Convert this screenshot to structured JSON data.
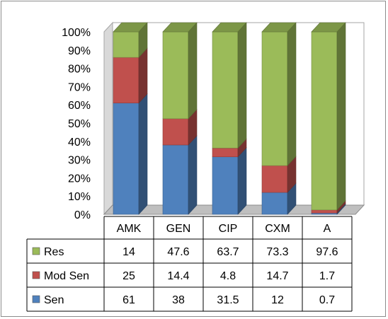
{
  "chart_data": {
    "type": "bar",
    "stacked": true,
    "percent": true,
    "three_d": true,
    "categories": [
      "AMK",
      "GEN",
      "CIP",
      "CXM",
      "A"
    ],
    "series": [
      {
        "name": "Sen",
        "values": [
          61,
          38,
          31.5,
          12,
          0.7
        ],
        "color": "#4f81bd"
      },
      {
        "name": "Mod Sen",
        "values": [
          25,
          14.4,
          4.8,
          14.7,
          1.7
        ],
        "color": "#c0504d"
      },
      {
        "name": "Res",
        "values": [
          14,
          47.6,
          63.7,
          73.3,
          97.6
        ],
        "color": "#9bbb59"
      }
    ],
    "yticks": [
      "0%",
      "10%",
      "20%",
      "30%",
      "40%",
      "50%",
      "60%",
      "70%",
      "80%",
      "90%",
      "100%"
    ],
    "ylim": [
      0,
      100
    ],
    "grid": false,
    "legend": "data-table-left",
    "table_rows": [
      {
        "name": "Res",
        "cells": [
          "14",
          "47.6",
          "63.7",
          "73.3",
          "97.6"
        ]
      },
      {
        "name": "Mod Sen",
        "cells": [
          "25",
          "14.4",
          "4.8",
          "14.7",
          "1.7"
        ]
      },
      {
        "name": "Sen",
        "cells": [
          "61",
          "38",
          "31.5",
          "12",
          "0.7"
        ]
      }
    ]
  }
}
